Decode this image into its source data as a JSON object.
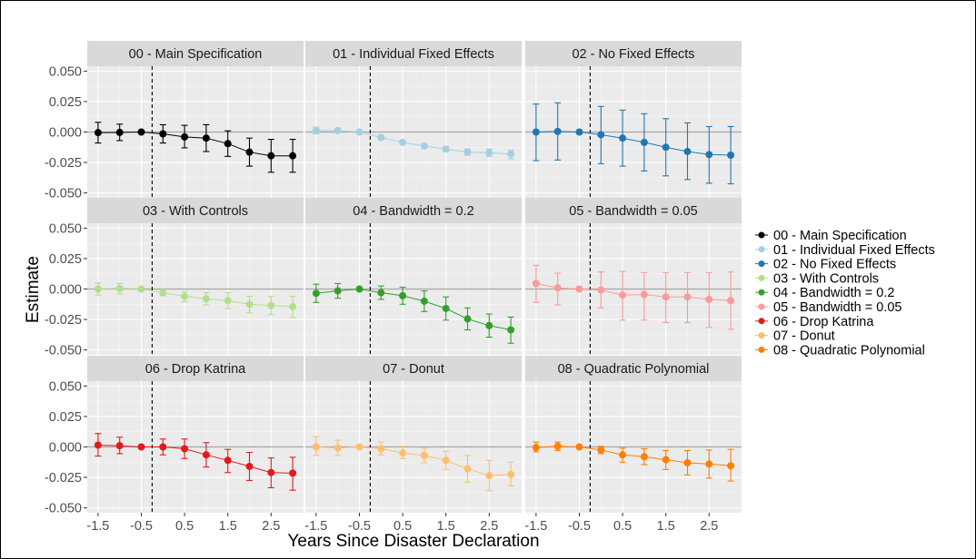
{
  "chart_data": {
    "type": "scatter",
    "xlabel": "Years Since Disaster Declaration",
    "ylabel": "Estimate",
    "x": [
      -1.5,
      -1.0,
      -0.5,
      0.0,
      0.5,
      1.0,
      1.5,
      2.0,
      2.5,
      3.0
    ],
    "xticks": [
      "-1.5",
      "-0.5",
      "0.5",
      "1.5",
      "2.5"
    ],
    "xtick_values": [
      -1.5,
      -0.5,
      0.5,
      1.5,
      2.5
    ],
    "yticks": [
      "-0.050",
      "-0.025",
      "0.000",
      "0.025",
      "0.050"
    ],
    "ytick_values": [
      -0.05,
      -0.025,
      0,
      0.025,
      0.05
    ],
    "xlim": [
      -1.75,
      3.25
    ],
    "ylim": [
      -0.054,
      0.054
    ],
    "event_line_x": -0.25,
    "grid": true,
    "legend_position": "right",
    "panels": [
      {
        "name": "00 - Main Specification",
        "color": "#000000",
        "values": [
          -0.0005,
          -0.0003,
          0.0,
          -0.0015,
          -0.004,
          -0.005,
          -0.0095,
          -0.0165,
          -0.0195,
          -0.0195
        ],
        "lower": [
          -0.009,
          -0.007,
          0.0,
          -0.009,
          -0.013,
          -0.016,
          -0.02,
          -0.028,
          -0.033,
          -0.033
        ],
        "upper": [
          0.008,
          0.0065,
          0.0,
          0.006,
          0.0055,
          0.006,
          0.001,
          -0.005,
          -0.006,
          -0.006
        ]
      },
      {
        "name": "01 - Individual Fixed Effects",
        "color": "#a6cee3",
        "values": [
          0.0012,
          0.0012,
          0.0,
          -0.0045,
          -0.0085,
          -0.0115,
          -0.014,
          -0.0165,
          -0.017,
          -0.018
        ],
        "lower": [
          -0.0015,
          0.0,
          0.0,
          -0.006,
          -0.01,
          -0.013,
          -0.016,
          -0.019,
          -0.02,
          -0.022
        ],
        "upper": [
          0.004,
          0.0025,
          0.0,
          -0.003,
          -0.007,
          -0.01,
          -0.012,
          -0.014,
          -0.014,
          -0.015
        ]
      },
      {
        "name": "02 - No Fixed Effects",
        "color": "#1f78b4",
        "values": [
          0.0,
          0.0005,
          0.0,
          -0.0022,
          -0.005,
          -0.0085,
          -0.0125,
          -0.016,
          -0.0185,
          -0.019
        ],
        "lower": [
          -0.0235,
          -0.023,
          0.0,
          -0.026,
          -0.028,
          -0.032,
          -0.036,
          -0.039,
          -0.042,
          -0.0425
        ],
        "upper": [
          0.023,
          0.024,
          0.0,
          0.021,
          0.018,
          0.015,
          0.011,
          0.0075,
          0.0045,
          0.0045
        ]
      },
      {
        "name": "03 - With Controls",
        "color": "#b2df8a",
        "values": [
          0.0,
          0.0005,
          0.0,
          -0.003,
          -0.006,
          -0.008,
          -0.0095,
          -0.0125,
          -0.0135,
          -0.0145
        ],
        "lower": [
          -0.005,
          -0.004,
          0.0,
          -0.0055,
          -0.0105,
          -0.013,
          -0.016,
          -0.0195,
          -0.021,
          -0.0235
        ],
        "upper": [
          0.005,
          0.0045,
          0.0,
          -0.0005,
          -0.002,
          -0.003,
          -0.003,
          -0.006,
          -0.006,
          -0.006
        ]
      },
      {
        "name": "04 - Bandwidth = 0.2",
        "color": "#33a02c",
        "values": [
          -0.0035,
          -0.0015,
          0.0,
          -0.003,
          -0.0055,
          -0.01,
          -0.016,
          -0.0245,
          -0.03,
          -0.0335
        ],
        "lower": [
          -0.011,
          -0.0075,
          0.0,
          -0.0085,
          -0.0125,
          -0.0185,
          -0.0255,
          -0.0335,
          -0.0395,
          -0.0445
        ],
        "upper": [
          0.004,
          0.0045,
          0.0,
          0.0025,
          0.0015,
          -0.0015,
          -0.0065,
          -0.0155,
          -0.0205,
          -0.023
        ]
      },
      {
        "name": "05 - Bandwidth = 0.05",
        "color": "#fb9a99",
        "values": [
          0.0045,
          0.001,
          0.0,
          -0.0008,
          -0.005,
          -0.0045,
          -0.0065,
          -0.0065,
          -0.0085,
          -0.0095
        ],
        "lower": [
          -0.011,
          -0.013,
          0.0,
          -0.0155,
          -0.0255,
          -0.0255,
          -0.0275,
          -0.0275,
          -0.0315,
          -0.033
        ],
        "upper": [
          0.0195,
          0.013,
          0.0,
          0.014,
          0.0145,
          0.0135,
          0.0135,
          0.0135,
          0.0135,
          0.014
        ]
      },
      {
        "name": "06 - Drop Katrina",
        "color": "#e31a1c",
        "values": [
          0.0015,
          0.001,
          0.0,
          0.0,
          -0.0015,
          -0.0065,
          -0.011,
          -0.016,
          -0.021,
          -0.0215
        ],
        "lower": [
          -0.0075,
          -0.0055,
          0.0,
          -0.0065,
          -0.0095,
          -0.0165,
          -0.021,
          -0.0275,
          -0.0335,
          -0.0355
        ],
        "upper": [
          0.011,
          0.008,
          0.0,
          0.0065,
          0.0065,
          0.0035,
          -0.002,
          -0.0045,
          -0.009,
          -0.0085
        ]
      },
      {
        "name": "07 - Donut",
        "color": "#fdbf6f",
        "values": [
          0.0,
          -0.0008,
          0.0,
          -0.0015,
          -0.005,
          -0.007,
          -0.011,
          -0.018,
          -0.0235,
          -0.0225
        ],
        "lower": [
          -0.007,
          -0.007,
          0.0,
          -0.0065,
          -0.0095,
          -0.013,
          -0.0185,
          -0.029,
          -0.036,
          -0.032
        ],
        "upper": [
          0.0085,
          0.0055,
          0.0,
          0.004,
          0.0005,
          -0.001,
          -0.0035,
          -0.007,
          -0.011,
          -0.0125
        ]
      },
      {
        "name": "08 - Quadratic Polynomial",
        "color": "#ff7f00",
        "values": [
          -0.0005,
          0.0005,
          0.0,
          -0.0025,
          -0.0065,
          -0.008,
          -0.0105,
          -0.013,
          -0.014,
          -0.0155
        ],
        "lower": [
          -0.004,
          -0.003,
          0.0,
          -0.0055,
          -0.0125,
          -0.0145,
          -0.0185,
          -0.023,
          -0.0255,
          -0.028
        ],
        "upper": [
          0.004,
          0.004,
          0.0,
          0.0005,
          -0.001,
          -0.0015,
          -0.003,
          -0.003,
          -0.0025,
          -0.002
        ]
      }
    ]
  }
}
